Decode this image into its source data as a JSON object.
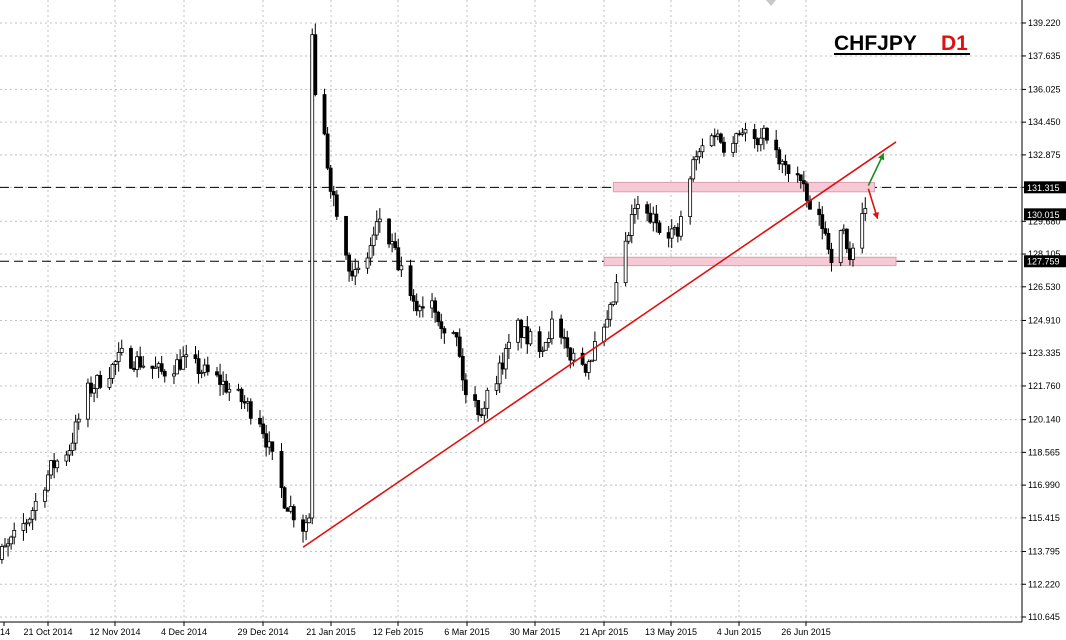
{
  "symbol": "CHFJPY",
  "timeframe": "D1",
  "colors": {
    "candle": "#000000",
    "trendline": "#e01010",
    "zone_fill": "#f7c9d6",
    "zone_edge": "#d8a0b0",
    "arrow_up": "#1a8a1a",
    "arrow_down": "#e01010",
    "price_tag_bg": "#000000",
    "price_tag_text": "#ffffff"
  },
  "chart_data": {
    "type": "candlestick",
    "title": "CHFJPY  D1",
    "y_axis": {
      "ticks": [
        "139.220",
        "137.635",
        "136.025",
        "134.450",
        "132.875",
        "131.315",
        "129.680",
        "128.105",
        "126.530",
        "124.910",
        "123.335",
        "121.760",
        "120.140",
        "118.565",
        "116.990",
        "115.415",
        "113.795",
        "112.220",
        "110.645"
      ],
      "range": [
        110.0,
        139.8
      ]
    },
    "x_axis": {
      "ticks": [
        "14",
        "21 Oct 2014",
        "12 Nov 2014",
        "4 Dec 2014",
        "29 Dec 2014",
        "21 Jan 2015",
        "12 Feb 2015",
        "6 Mar 2015",
        "30 Mar 2015",
        "21 Apr 2015",
        "13 May 2015",
        "4 Jun 2015",
        "26 Jun 2015"
      ],
      "range": [
        "2014-09-30",
        "2015-07-24"
      ]
    },
    "grid": true,
    "price_tags": [
      {
        "label": "131.315",
        "value": 131.315
      },
      {
        "label": "130.015",
        "value": 130.015
      },
      {
        "label": "127.759",
        "value": 127.759
      }
    ],
    "horizontal_lines": [
      {
        "value": 131.315,
        "style": "dashed"
      },
      {
        "value": 127.759,
        "style": "dashed"
      }
    ],
    "trendline": {
      "start": [
        "2015-01-12",
        114.0
      ],
      "end": [
        "2015-07-24",
        133.5
      ]
    },
    "zones": [
      {
        "from": "2015-04-23",
        "to": "2015-07-17",
        "low": 131.1,
        "high": 131.55
      },
      {
        "from": "2015-04-20",
        "to": "2015-07-24",
        "low": 127.55,
        "high": 127.95
      }
    ],
    "arrows": [
      {
        "direction": "up",
        "color": "green",
        "from": [
          "2015-07-15",
          131.4
        ],
        "to": [
          "2015-07-20",
          132.95
        ]
      },
      {
        "direction": "down",
        "color": "red",
        "from": [
          "2015-07-15",
          131.25
        ],
        "to": [
          "2015-07-18",
          129.8
        ]
      }
    ],
    "price_path": {
      "dates": [
        "2014-09-30",
        "2014-10-08",
        "2014-10-15",
        "2014-10-22",
        "2014-10-28",
        "2014-11-03",
        "2014-11-10",
        "2014-11-14",
        "2014-11-20",
        "2014-11-27",
        "2014-12-04",
        "2014-12-10",
        "2014-12-16",
        "2014-12-22",
        "2014-12-29",
        "2015-01-02",
        "2015-01-06",
        "2015-01-12",
        "2015-01-14",
        "2015-01-15",
        "2015-01-16",
        "2015-01-19",
        "2015-01-21",
        "2015-01-26",
        "2015-01-28",
        "2015-02-02",
        "2015-02-06",
        "2015-02-11",
        "2015-02-17",
        "2015-02-23",
        "2015-02-27",
        "2015-03-03",
        "2015-03-06",
        "2015-03-11",
        "2015-03-17",
        "2015-03-23",
        "2015-03-26",
        "2015-03-31",
        "2015-04-03",
        "2015-04-08",
        "2015-04-14",
        "2015-04-17",
        "2015-04-21",
        "2015-04-24",
        "2015-04-30",
        "2015-05-05",
        "2015-05-11",
        "2015-05-14",
        "2015-05-19",
        "2015-05-25",
        "2015-05-29",
        "2015-06-04",
        "2015-06-09",
        "2015-06-12",
        "2015-06-16",
        "2015-06-22",
        "2015-06-26",
        "2015-06-30",
        "2015-07-03",
        "2015-07-07",
        "2015-07-09",
        "2015-07-13",
        "2015-07-14"
      ],
      "values": [
        113.0,
        114.0,
        115.5,
        117.8,
        118.8,
        121.5,
        122.5,
        123.2,
        122.9,
        122.4,
        123.0,
        122.5,
        122.0,
        121.2,
        120.2,
        118.2,
        116.3,
        115.0,
        115.5,
        138.9,
        135.5,
        133.5,
        131.5,
        128.5,
        126.8,
        128.0,
        129.8,
        128.0,
        125.5,
        126.0,
        124.6,
        124.0,
        121.3,
        120.6,
        122.6,
        124.6,
        124.0,
        123.8,
        124.7,
        123.4,
        122.8,
        123.6,
        124.6,
        126.5,
        130.3,
        129.8,
        129.3,
        129.0,
        132.4,
        134.1,
        133.4,
        134.2,
        133.2,
        134.0,
        132.4,
        131.9,
        130.2,
        129.5,
        128.1,
        129.2,
        127.9,
        129.7,
        130.0
      ]
    }
  }
}
